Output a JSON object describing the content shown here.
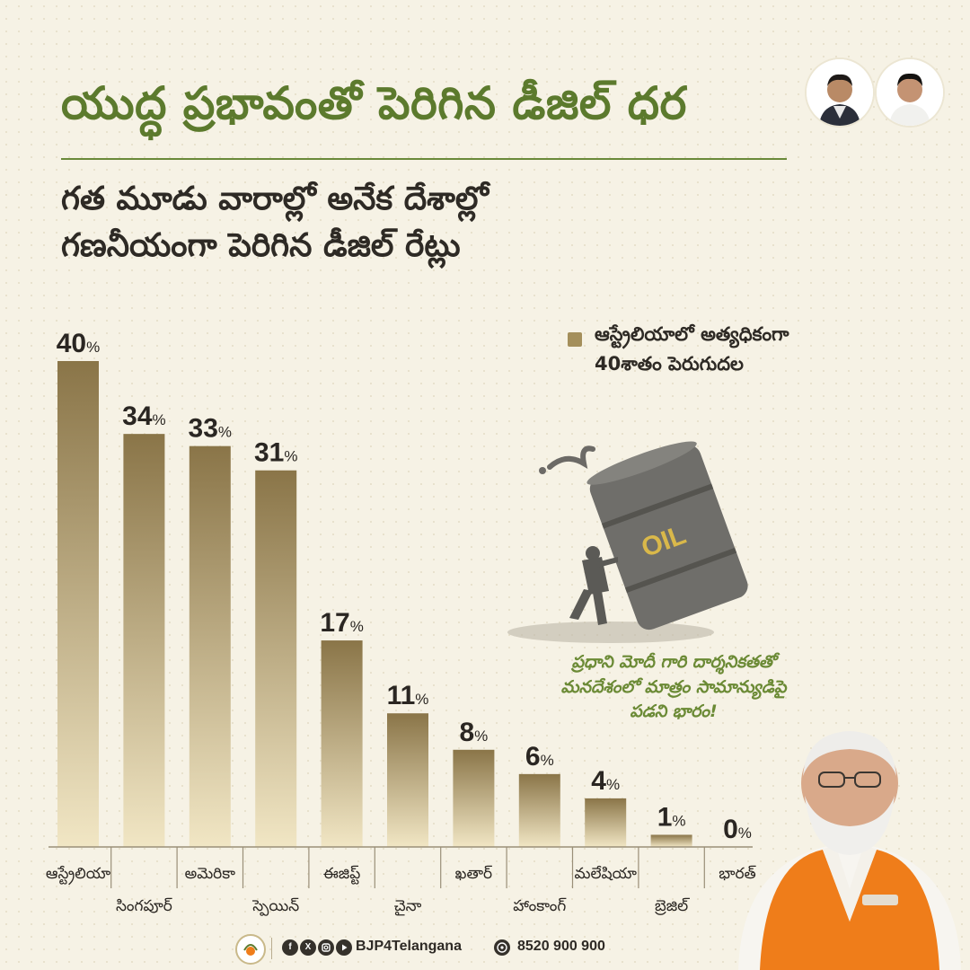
{
  "title": "యుద్ధ ప్రభావంతో పెరిగిన డీజిల్ ధర",
  "subtitle": {
    "line1": "గత మూడు వారాల్లో అనేక దేశాల్లో",
    "line2": "గణనీయంగా పెరిగిన డీజిల్ రేట్లు"
  },
  "legend": {
    "line1": "ఆస్ట్రేలియాలో అత్యధికంగా",
    "line2": "40శాతం పెరుగుదల"
  },
  "note": {
    "line1": "ప్రధాని మోదీ గారి దార్శనికతతో",
    "line2": "మనదేశంలో మాత్రం సామాన్యుడిపై",
    "line3": "పడని భారం!"
  },
  "illustration": {
    "barrel_label": "OIL"
  },
  "footer": {
    "handle": "BJP4Telangana",
    "phone": "8520 900 900",
    "social_icons": [
      "facebook-icon",
      "x-icon",
      "instagram-icon",
      "youtube-icon",
      "whatsapp-icon"
    ]
  },
  "colors": {
    "title": "#5c7a2d",
    "bar_top": "#8a7548",
    "bar_bottom": "#f0e4c0",
    "note": "#6b8a35",
    "saffron": "#ef7d1a"
  },
  "chart_data": {
    "type": "bar",
    "title": "",
    "xlabel": "",
    "ylabel": "",
    "ylim": [
      0,
      40
    ],
    "value_suffix": "%",
    "categories": [
      "ఆస్ట్రేలియా",
      "సింగపూర్",
      "అమెరికా",
      "స్పెయిన్",
      "ఈజిప్ట్",
      "చైనా",
      "ఖతార్",
      "హాంకాంగ్",
      "మలేషియా",
      "బ్రెజిల్",
      "భారత్"
    ],
    "values": [
      40,
      34,
      33,
      31,
      17,
      11,
      8,
      6,
      4,
      1,
      0
    ],
    "labels": [
      "40",
      "34",
      "33",
      "31",
      "17",
      "11",
      "8",
      "6",
      "4",
      "1",
      "0"
    ]
  }
}
